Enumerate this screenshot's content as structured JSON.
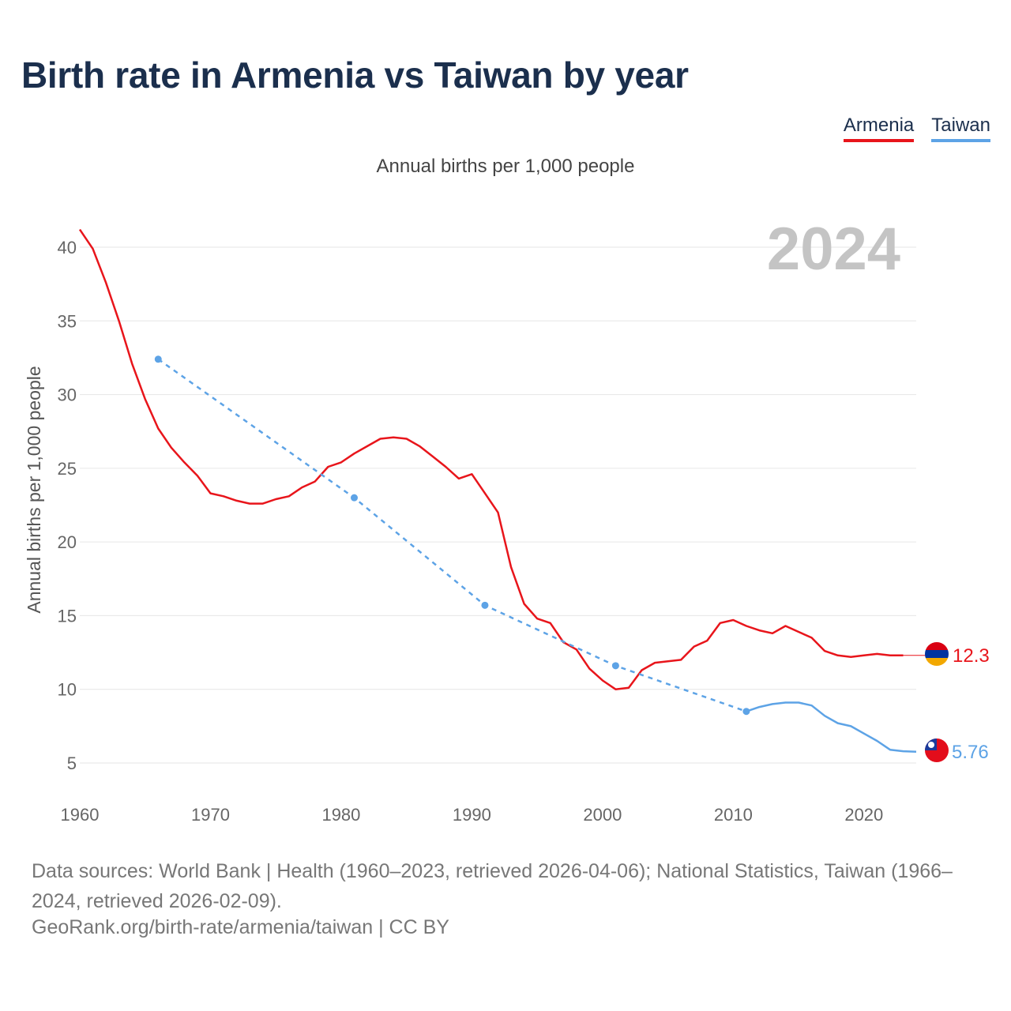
{
  "title": "Birth rate in Armenia vs Taiwan by year",
  "subtitle": "Annual births per 1,000 people",
  "legend": {
    "armenia": "Armenia",
    "taiwan": "Taiwan"
  },
  "sources": "Data sources: World Bank | Health (1960–2023, retrieved 2026-04-06); National Statistics, Taiwan (1966–2024, retrieved 2026-02-09).",
  "credit": "GeoRank.org/birth-rate/armenia/taiwan | CC BY",
  "chart_data": {
    "type": "line",
    "title": "Birth rate in Armenia vs Taiwan by year",
    "ylabel": "Annual births per 1,000 people",
    "xlabel": "",
    "year_label": "2024",
    "xlim": [
      1960,
      2024
    ],
    "ylim": [
      2.5,
      42
    ],
    "x_ticks": [
      1960,
      1970,
      1980,
      1990,
      2000,
      2010,
      2020
    ],
    "y_ticks": [
      5,
      10,
      15,
      20,
      25,
      30,
      35,
      40
    ],
    "grid": true,
    "series": [
      {
        "name": "Armenia",
        "color": "#e8151b",
        "style": "solid",
        "end_label": "12.3",
        "end_value": 12.3,
        "points": [
          [
            1960,
            41.2
          ],
          [
            1961,
            39.9
          ],
          [
            1962,
            37.6
          ],
          [
            1963,
            35.0
          ],
          [
            1964,
            32.1
          ],
          [
            1965,
            29.7
          ],
          [
            1966,
            27.7
          ],
          [
            1967,
            26.4
          ],
          [
            1968,
            25.4
          ],
          [
            1969,
            24.5
          ],
          [
            1970,
            23.3
          ],
          [
            1971,
            23.1
          ],
          [
            1972,
            22.8
          ],
          [
            1973,
            22.6
          ],
          [
            1974,
            22.6
          ],
          [
            1975,
            22.9
          ],
          [
            1976,
            23.1
          ],
          [
            1977,
            23.7
          ],
          [
            1978,
            24.1
          ],
          [
            1979,
            25.1
          ],
          [
            1980,
            25.4
          ],
          [
            1981,
            26.0
          ],
          [
            1982,
            26.5
          ],
          [
            1983,
            27.0
          ],
          [
            1984,
            27.1
          ],
          [
            1985,
            27.0
          ],
          [
            1986,
            26.5
          ],
          [
            1987,
            25.8
          ],
          [
            1988,
            25.1
          ],
          [
            1989,
            24.3
          ],
          [
            1990,
            24.6
          ],
          [
            1991,
            23.3
          ],
          [
            1992,
            22.0
          ],
          [
            1993,
            18.3
          ],
          [
            1994,
            15.8
          ],
          [
            1995,
            14.8
          ],
          [
            1996,
            14.5
          ],
          [
            1997,
            13.2
          ],
          [
            1998,
            12.7
          ],
          [
            1999,
            11.4
          ],
          [
            2000,
            10.6
          ],
          [
            2001,
            10.0
          ],
          [
            2002,
            10.1
          ],
          [
            2003,
            11.3
          ],
          [
            2004,
            11.8
          ],
          [
            2005,
            11.9
          ],
          [
            2006,
            12.0
          ],
          [
            2007,
            12.9
          ],
          [
            2008,
            13.3
          ],
          [
            2009,
            14.5
          ],
          [
            2010,
            14.7
          ],
          [
            2011,
            14.3
          ],
          [
            2012,
            14.0
          ],
          [
            2013,
            13.8
          ],
          [
            2014,
            14.3
          ],
          [
            2015,
            13.9
          ],
          [
            2016,
            13.5
          ],
          [
            2017,
            12.6
          ],
          [
            2018,
            12.3
          ],
          [
            2019,
            12.2
          ],
          [
            2020,
            12.3
          ],
          [
            2021,
            12.4
          ],
          [
            2022,
            12.3
          ],
          [
            2023,
            12.3
          ]
        ]
      },
      {
        "name": "Taiwan",
        "color": "#5da3e6",
        "end_label": "5.76",
        "end_value": 5.76,
        "dashed_points": [
          [
            1966,
            32.4
          ],
          [
            1981,
            23.0
          ],
          [
            1991,
            15.7
          ],
          [
            2001,
            11.6
          ],
          [
            2011,
            8.5
          ]
        ],
        "solid_points": [
          [
            2011,
            8.5
          ],
          [
            2012,
            8.8
          ],
          [
            2013,
            9.0
          ],
          [
            2014,
            9.1
          ],
          [
            2015,
            9.1
          ],
          [
            2016,
            8.9
          ],
          [
            2017,
            8.2
          ],
          [
            2018,
            7.7
          ],
          [
            2019,
            7.5
          ],
          [
            2020,
            7.0
          ],
          [
            2021,
            6.5
          ],
          [
            2022,
            5.9
          ],
          [
            2023,
            5.8
          ],
          [
            2024,
            5.76
          ]
        ]
      }
    ]
  }
}
